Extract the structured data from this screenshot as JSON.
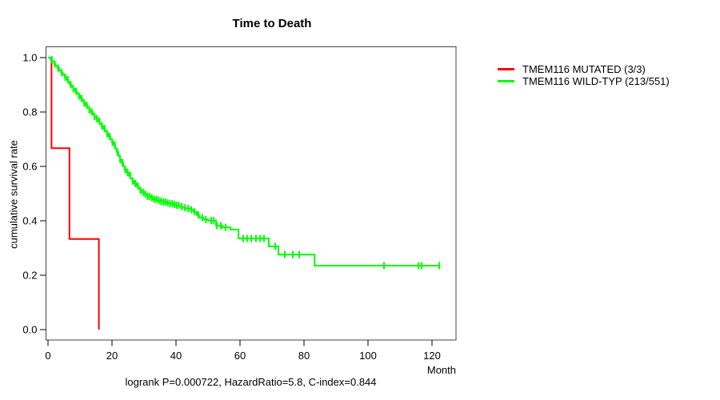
{
  "chart_data": {
    "type": "line",
    "subtype": "kaplan-meier-step",
    "title": "Time to Death",
    "xlabel": "Month",
    "ylabel": "cumulative survival rate",
    "caption": "logrank P=0.000722, HazardRatio=5.8, C-index=0.844",
    "grid": false,
    "legend_position": "right-outside",
    "background_color": "#FFFFFF",
    "axis_color": "#000000",
    "x_axis": {
      "ticks": [
        0,
        20,
        40,
        60,
        80,
        100,
        120
      ],
      "tick_labels": [
        "0",
        "20",
        "40",
        "60",
        "80",
        "100",
        "120"
      ],
      "range": [
        0,
        122.3
      ]
    },
    "y_axis": {
      "ticks": [
        0.0,
        0.2,
        0.4,
        0.6,
        0.8,
        1.0
      ],
      "tick_labels": [
        "0.0",
        "0.2",
        "0.4",
        "0.6",
        "0.8",
        "1.0"
      ],
      "range": [
        0.0,
        1.0
      ]
    },
    "series": [
      {
        "name": "TMEM116 MUTATED (3/3)",
        "color": "#FF0000",
        "points": [
          [
            0,
            1.0
          ],
          [
            1.1,
            0.667
          ],
          [
            6.7,
            0.333
          ],
          [
            15.9,
            0.0
          ]
        ],
        "censors": []
      },
      {
        "name": "TMEM116 WILD-TYP (213/551)",
        "color": "#00FF00",
        "points": [
          [
            0,
            1.0
          ],
          [
            0.8,
            0.993
          ],
          [
            1.3,
            0.985
          ],
          [
            1.9,
            0.977
          ],
          [
            2.4,
            0.969
          ],
          [
            3.0,
            0.961
          ],
          [
            3.5,
            0.953
          ],
          [
            4.1,
            0.945
          ],
          [
            4.6,
            0.937
          ],
          [
            5.2,
            0.928
          ],
          [
            5.7,
            0.919
          ],
          [
            6.3,
            0.91
          ],
          [
            6.8,
            0.901
          ],
          [
            7.4,
            0.893
          ],
          [
            7.9,
            0.885
          ],
          [
            8.5,
            0.876
          ],
          [
            9.0,
            0.867
          ],
          [
            9.6,
            0.859
          ],
          [
            10.1,
            0.85
          ],
          [
            10.7,
            0.841
          ],
          [
            11.2,
            0.833
          ],
          [
            11.8,
            0.825
          ],
          [
            12.3,
            0.816
          ],
          [
            12.9,
            0.808
          ],
          [
            13.4,
            0.8
          ],
          [
            14.0,
            0.792
          ],
          [
            14.5,
            0.784
          ],
          [
            15.1,
            0.775
          ],
          [
            15.6,
            0.766
          ],
          [
            16.2,
            0.757
          ],
          [
            16.7,
            0.748
          ],
          [
            17.3,
            0.739
          ],
          [
            17.8,
            0.73
          ],
          [
            18.4,
            0.72
          ],
          [
            18.9,
            0.71
          ],
          [
            19.5,
            0.7
          ],
          [
            20.0,
            0.69
          ],
          [
            20.5,
            0.678
          ],
          [
            21.0,
            0.665
          ],
          [
            21.5,
            0.652
          ],
          [
            22.0,
            0.639
          ],
          [
            22.5,
            0.626
          ],
          [
            23.0,
            0.613
          ],
          [
            23.5,
            0.601
          ],
          [
            24.0,
            0.589
          ],
          [
            24.6,
            0.577
          ],
          [
            25.2,
            0.566
          ],
          [
            25.8,
            0.556
          ],
          [
            26.4,
            0.546
          ],
          [
            27.0,
            0.537
          ],
          [
            27.6,
            0.528
          ],
          [
            28.2,
            0.52
          ],
          [
            28.8,
            0.512
          ],
          [
            29.4,
            0.505
          ],
          [
            30.0,
            0.498
          ],
          [
            31.0,
            0.49
          ],
          [
            32.0,
            0.484
          ],
          [
            33.0,
            0.479
          ],
          [
            34.0,
            0.475
          ],
          [
            35.0,
            0.472
          ],
          [
            36.0,
            0.469
          ],
          [
            37.0,
            0.466
          ],
          [
            38.0,
            0.463
          ],
          [
            39.0,
            0.46
          ],
          [
            40.0,
            0.457
          ],
          [
            41.0,
            0.452
          ],
          [
            42.0,
            0.448
          ],
          [
            43.0,
            0.445
          ],
          [
            44.5,
            0.441
          ],
          [
            45.5,
            0.433
          ],
          [
            46.5,
            0.421
          ],
          [
            47.2,
            0.412
          ],
          [
            48.5,
            0.405
          ],
          [
            50.0,
            0.401
          ],
          [
            52.5,
            0.382
          ],
          [
            54.5,
            0.376
          ],
          [
            57.0,
            0.368
          ],
          [
            59.5,
            0.335
          ],
          [
            69.0,
            0.306
          ],
          [
            72.0,
            0.276
          ],
          [
            83.3,
            0.235
          ],
          [
            122.3,
            0.235
          ]
        ],
        "censors": [
          1.2,
          2.1,
          3.2,
          4.3,
          5.4,
          6.2,
          7.1,
          7.9,
          8.8,
          9.7,
          10.5,
          11.3,
          12.1,
          12.9,
          13.7,
          14.5,
          15.3,
          16.1,
          16.9,
          17.7,
          18.5,
          19.3,
          20.1,
          20.9,
          21.7,
          22.5,
          23.3,
          24.1,
          24.9,
          25.7,
          26.5,
          27.3,
          28.1,
          28.9,
          29.7,
          30.4,
          31.1,
          31.8,
          32.5,
          33.2,
          33.9,
          34.6,
          35.3,
          36.0,
          36.7,
          37.4,
          38.1,
          38.8,
          39.5,
          40.2,
          40.9,
          41.8,
          42.8,
          43.8,
          44.8,
          45.8,
          47.0,
          48.2,
          49.3,
          51.0,
          51.8,
          52.8,
          54.0,
          55.5,
          61.0,
          62.2,
          63.5,
          65.0,
          66.3,
          67.5,
          71.0,
          74.0,
          76.5,
          78.5,
          105.0,
          115.8,
          116.8,
          122.3
        ]
      }
    ]
  }
}
